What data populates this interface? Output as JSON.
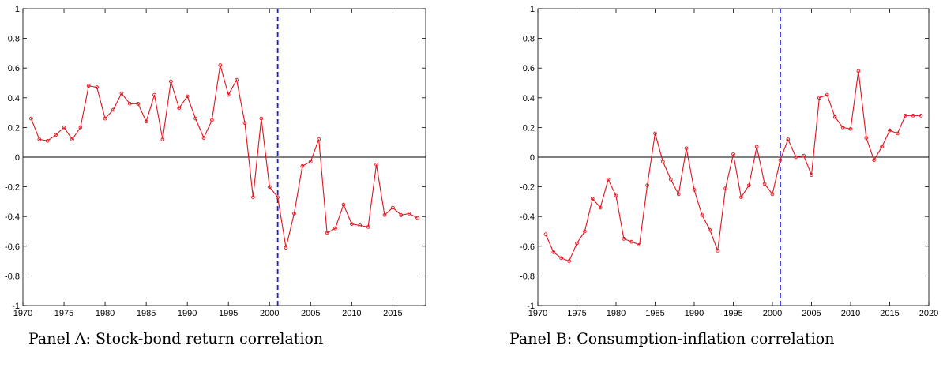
{
  "chart_data": [
    {
      "type": "line",
      "title": "",
      "xlabel": "",
      "ylabel": "",
      "caption": "Panel A: Stock-bond return correlation",
      "xlim": [
        1970,
        2019
      ],
      "ylim": [
        -1,
        1
      ],
      "xticks": [
        1970,
        1975,
        1980,
        1985,
        1990,
        1995,
        2000,
        2005,
        2010,
        2015
      ],
      "yticks": [
        -1,
        -0.8,
        -0.6,
        -0.4,
        -0.2,
        0,
        0.2,
        0.4,
        0.6,
        0.8,
        1
      ],
      "vline_x": 2001,
      "series": [
        {
          "color": "#e0141e",
          "marker": "circle",
          "x": [
            1971,
            1972,
            1973,
            1974,
            1975,
            1976,
            1977,
            1978,
            1979,
            1980,
            1981,
            1982,
            1983,
            1984,
            1985,
            1986,
            1987,
            1988,
            1989,
            1990,
            1991,
            1992,
            1993,
            1994,
            1995,
            1996,
            1997,
            1998,
            1999,
            2000,
            2001,
            2002,
            2003,
            2004,
            2005,
            2006,
            2007,
            2008,
            2009,
            2010,
            2011,
            2012,
            2013,
            2014,
            2015,
            2016,
            2017,
            2018
          ],
          "values": [
            0.26,
            0.12,
            0.11,
            0.15,
            0.2,
            0.12,
            0.2,
            0.48,
            0.47,
            0.26,
            0.32,
            0.43,
            0.36,
            0.36,
            0.24,
            0.42,
            0.12,
            0.51,
            0.33,
            0.41,
            0.26,
            0.13,
            0.25,
            0.62,
            0.42,
            0.52,
            0.23,
            -0.27,
            0.26,
            -0.2,
            -0.27,
            -0.61,
            -0.38,
            -0.06,
            -0.03,
            0.12,
            -0.51,
            -0.48,
            -0.32,
            -0.45,
            -0.46,
            -0.47,
            -0.05,
            -0.39,
            -0.34,
            -0.39,
            -0.38,
            -0.41
          ]
        }
      ]
    },
    {
      "type": "line",
      "title": "",
      "xlabel": "",
      "ylabel": "",
      "caption": "Panel B: Consumption-inflation correlation",
      "xlim": [
        1970,
        2020
      ],
      "ylim": [
        -1,
        1
      ],
      "xticks": [
        1970,
        1975,
        1980,
        1985,
        1990,
        1995,
        2000,
        2005,
        2010,
        2015,
        2020
      ],
      "yticks": [
        -1,
        -0.8,
        -0.6,
        -0.4,
        -0.2,
        0,
        0.2,
        0.4,
        0.6,
        0.8,
        1
      ],
      "vline_x": 2001,
      "series": [
        {
          "color": "#e0141e",
          "marker": "circle",
          "x": [
            1971,
            1972,
            1973,
            1974,
            1975,
            1976,
            1977,
            1978,
            1979,
            1980,
            1981,
            1982,
            1983,
            1984,
            1985,
            1986,
            1987,
            1988,
            1989,
            1990,
            1991,
            1992,
            1993,
            1994,
            1995,
            1996,
            1997,
            1998,
            1999,
            2000,
            2001,
            2002,
            2003,
            2004,
            2005,
            2006,
            2007,
            2008,
            2009,
            2010,
            2011,
            2012,
            2013,
            2014,
            2015,
            2016,
            2017,
            2018,
            2019
          ],
          "values": [
            -0.52,
            -0.64,
            -0.68,
            -0.7,
            -0.58,
            -0.5,
            -0.28,
            -0.34,
            -0.15,
            -0.26,
            -0.55,
            -0.57,
            -0.59,
            -0.19,
            0.16,
            -0.03,
            -0.15,
            -0.25,
            0.06,
            -0.22,
            -0.39,
            -0.49,
            -0.63,
            -0.21,
            0.02,
            -0.27,
            -0.19,
            0.07,
            -0.18,
            -0.25,
            -0.02,
            0.12,
            0.0,
            0.01,
            -0.12,
            0.4,
            0.42,
            0.27,
            0.2,
            0.19,
            0.58,
            0.13,
            -0.02,
            0.07,
            0.18,
            0.16,
            0.28,
            0.28,
            0.28
          ]
        }
      ]
    }
  ],
  "colors": {
    "series": "#e0141e",
    "vline": "#1a1ae6",
    "zero_line": "#000000",
    "axes": "#000000"
  }
}
